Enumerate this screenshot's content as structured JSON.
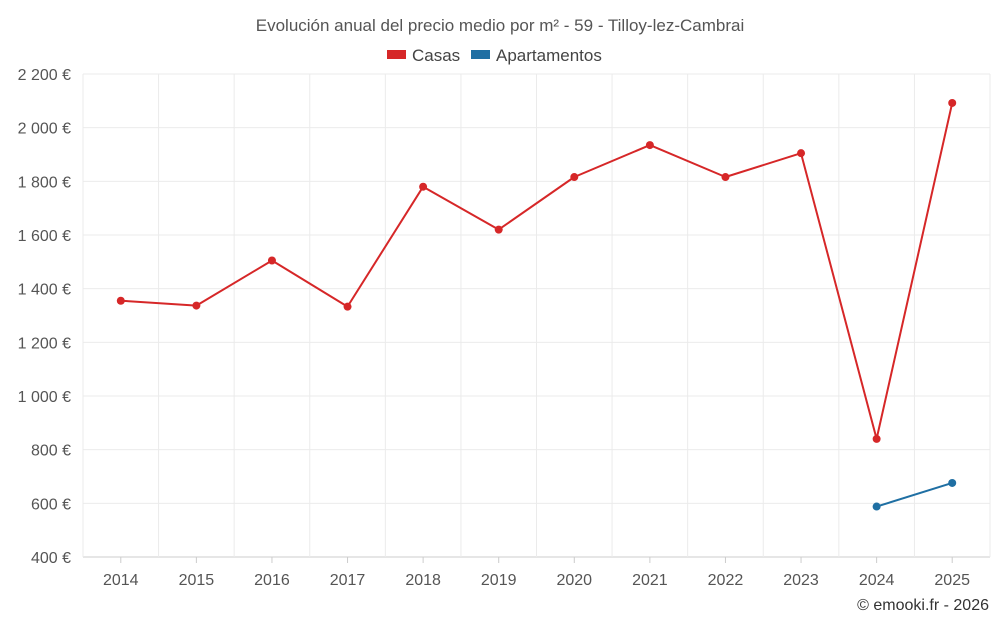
{
  "chart_data": {
    "type": "line",
    "title": "Evolución anual del precio medio por m² - 59 - Tilloy-lez-Cambrai",
    "categories": [
      "2014",
      "2015",
      "2016",
      "2017",
      "2018",
      "2019",
      "2020",
      "2021",
      "2022",
      "2023",
      "2024",
      "2025"
    ],
    "ylim": [
      400,
      2200
    ],
    "yticks": [
      400,
      600,
      800,
      1000,
      1200,
      1400,
      1600,
      1800,
      2000,
      2200
    ],
    "ytick_labels": [
      "400 €",
      "600 €",
      "800 €",
      "1 000 €",
      "1 200 €",
      "1 400 €",
      "1 600 €",
      "1 800 €",
      "2 000 €",
      "2 200 €"
    ],
    "grid": true,
    "legend_position": "top-center",
    "series": [
      {
        "name": "Casas",
        "color": "#d62728",
        "values": [
          1355,
          1337,
          1505,
          1333,
          1780,
          1620,
          1816,
          1935,
          1816,
          1905,
          840,
          2092
        ]
      },
      {
        "name": "Apartamentos",
        "color": "#1f6fa3",
        "values": [
          null,
          null,
          null,
          null,
          null,
          null,
          null,
          null,
          null,
          null,
          588,
          676
        ]
      }
    ],
    "credit": "© emooki.fr - 2026"
  }
}
